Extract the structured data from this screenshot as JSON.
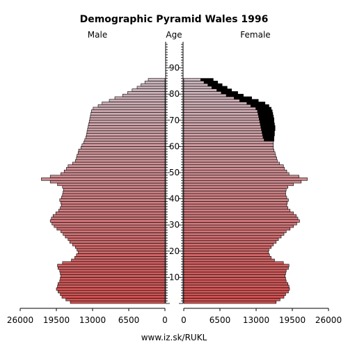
{
  "chart_data": {
    "type": "bar",
    "title": "Demographic Pyramid Wales 1996",
    "left_label": "Male",
    "center_label": "Age",
    "right_label": "Female",
    "footer": "www.iz.sk/RUKL",
    "x_ticks_left": [
      "26000",
      "19500",
      "13000",
      "6500",
      "0"
    ],
    "x_ticks_right": [
      "0",
      "6500",
      "13000",
      "19500",
      "26000"
    ],
    "x_tick_values": [
      26000,
      19500,
      13000,
      6500,
      0
    ],
    "xlim": [
      0,
      26000
    ],
    "age_ticks": [
      "10",
      "20",
      "30",
      "40",
      "50",
      "60",
      "70",
      "80",
      "90"
    ],
    "age_tick_values": [
      10,
      20,
      30,
      40,
      50,
      60,
      70,
      80,
      90
    ],
    "ylim": [
      0,
      99
    ],
    "ages": [
      0,
      1,
      2,
      3,
      4,
      5,
      6,
      7,
      8,
      9,
      10,
      11,
      12,
      13,
      14,
      15,
      16,
      17,
      18,
      19,
      20,
      21,
      22,
      23,
      24,
      25,
      26,
      27,
      28,
      29,
      30,
      31,
      32,
      33,
      34,
      35,
      36,
      37,
      38,
      39,
      40,
      41,
      42,
      43,
      44,
      45,
      46,
      47,
      48,
      49,
      50,
      51,
      52,
      53,
      54,
      55,
      56,
      57,
      58,
      59,
      60,
      61,
      62,
      63,
      64,
      65,
      66,
      67,
      68,
      69,
      70,
      71,
      72,
      73,
      74,
      75,
      76,
      77,
      78,
      79,
      80,
      81,
      82,
      83,
      84,
      85
    ],
    "series": [
      {
        "name": "Male",
        "values": [
          17000,
          17800,
          18500,
          18800,
          19200,
          19500,
          19300,
          19200,
          18900,
          18800,
          18700,
          18800,
          18900,
          19200,
          19300,
          18400,
          16800,
          16200,
          15900,
          15600,
          15800,
          16100,
          16600,
          17100,
          17400,
          17900,
          18300,
          18700,
          19400,
          19900,
          20300,
          20600,
          20400,
          20100,
          19600,
          19100,
          18800,
          18600,
          18700,
          18900,
          18600,
          18400,
          18300,
          18200,
          18400,
          19300,
          20600,
          22200,
          20600,
          18700,
          18100,
          17700,
          17400,
          16600,
          16100,
          15900,
          15800,
          15600,
          15500,
          15100,
          14900,
          14600,
          14400,
          14200,
          14100,
          14000,
          13900,
          13800,
          13700,
          13600,
          13500,
          13400,
          13300,
          13200,
          12900,
          12000,
          11300,
          10000,
          9000,
          7600,
          6700,
          5900,
          5000,
          4300,
          3600,
          3000
        ],
        "color": "#cc4444"
      },
      {
        "name": "Female",
        "values": [
          16600,
          17300,
          18000,
          18300,
          18800,
          19000,
          18900,
          18700,
          18400,
          18300,
          18200,
          18300,
          18400,
          18800,
          18900,
          17900,
          16300,
          15700,
          15400,
          15200,
          15300,
          15700,
          16100,
          16600,
          17000,
          17500,
          18000,
          18400,
          19100,
          19700,
          20300,
          20800,
          20500,
          20200,
          19700,
          19100,
          18700,
          18500,
          18600,
          18800,
          18500,
          18300,
          18300,
          18400,
          18700,
          19700,
          21100,
          22200,
          20700,
          18900,
          18500,
          18100,
          17900,
          17200,
          16800,
          16700,
          16500,
          16400,
          16200,
          16100,
          16100,
          16100,
          16200,
          16200,
          16300,
          16300,
          16400,
          16400,
          16300,
          16200,
          16200,
          16100,
          16000,
          15900,
          15700,
          15300,
          14600,
          13400,
          12200,
          10700,
          9700,
          8600,
          7800,
          6900,
          6100,
          5300
        ],
        "surplus": [
          0,
          0,
          0,
          0,
          0,
          0,
          0,
          0,
          0,
          0,
          0,
          0,
          0,
          0,
          0,
          0,
          0,
          0,
          0,
          0,
          0,
          0,
          0,
          0,
          0,
          0,
          0,
          0,
          0,
          0,
          0,
          0,
          0,
          0,
          0,
          0,
          0,
          0,
          0,
          0,
          0,
          0,
          0,
          0,
          0,
          0,
          0,
          0,
          0,
          0,
          0,
          0,
          0,
          0,
          0,
          0,
          0,
          0,
          0,
          0,
          0,
          0,
          0,
          0,
          0,
          0,
          0,
          0,
          0,
          0,
          0,
          0,
          0,
          0,
          0,
          0,
          0,
          0,
          0,
          0,
          0,
          0,
          0,
          0,
          0,
          0
        ],
        "color": "#cc4444"
      }
    ],
    "excess_color": "#000000",
    "bar_outline": "#000000",
    "old_age_color": "#c8b0b8"
  }
}
